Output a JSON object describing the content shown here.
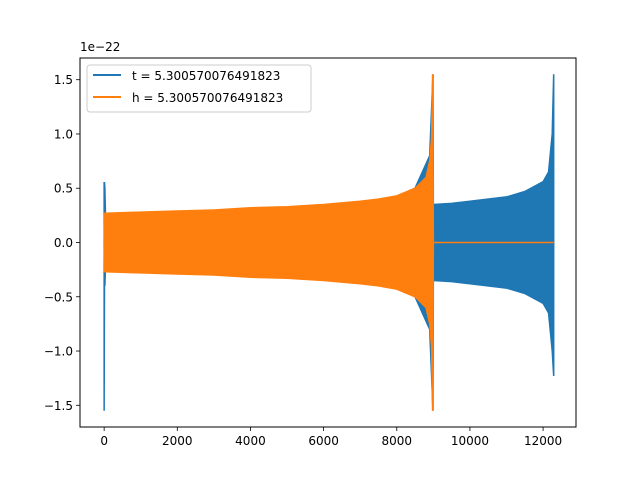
{
  "chart_data": {
    "type": "line",
    "title": "",
    "xlabel": "",
    "ylabel": "",
    "xlim": [
      -660,
      12900
    ],
    "ylim": [
      -1.7,
      1.7
    ],
    "y_offset_label": "1e−22",
    "x_ticks": [
      0,
      2000,
      4000,
      6000,
      8000,
      10000,
      12000
    ],
    "x_tick_labels": [
      "0",
      "2000",
      "4000",
      "6000",
      "8000",
      "10000",
      "12000"
    ],
    "y_ticks": [
      -1.5,
      -1.0,
      -0.5,
      0.0,
      0.5,
      1.0,
      1.5
    ],
    "y_tick_labels": [
      "−1.5",
      "−1.0",
      "−0.5",
      "0.0",
      "0.5",
      "1.0",
      "1.5"
    ],
    "grid": false,
    "legend_position": "top-left",
    "series": [
      {
        "name": "t = 5.300570076491823",
        "color": "#1f77b4",
        "x": [
          0,
          10,
          20,
          40,
          100,
          1000,
          2000,
          3000,
          4000,
          5000,
          6000,
          7000,
          8000,
          8500,
          8900,
          8990,
          9000,
          9500,
          10000,
          11000,
          11500,
          12000,
          12150,
          12250,
          12290
        ],
        "y_upper": [
          0.55,
          0.55,
          0.5,
          0.2,
          0.26,
          0.27,
          0.28,
          0.29,
          0.3,
          0.31,
          0.33,
          0.36,
          0.42,
          0.5,
          0.8,
          1.55,
          0.35,
          0.36,
          0.38,
          0.42,
          0.47,
          0.56,
          0.65,
          1.0,
          1.55
        ],
        "y_lower": [
          -1.55,
          -0.3,
          -0.4,
          -0.2,
          -0.26,
          -0.27,
          -0.28,
          -0.29,
          -0.3,
          -0.31,
          -0.33,
          -0.36,
          -0.42,
          -0.5,
          -0.8,
          -1.55,
          -0.35,
          -0.36,
          -0.38,
          -0.42,
          -0.47,
          -0.56,
          -0.65,
          -1.0,
          -1.23
        ]
      },
      {
        "name": "h = 5.300570076491823",
        "color": "#ff7f0e",
        "x": [
          0,
          10,
          20,
          1000,
          2000,
          3000,
          4000,
          5000,
          6000,
          7000,
          7500,
          8000,
          8500,
          8800,
          8900,
          8950,
          8980,
          9000,
          12290
        ],
        "y_upper": [
          0.0,
          0.27,
          0.27,
          0.28,
          0.29,
          0.3,
          0.32,
          0.33,
          0.35,
          0.38,
          0.4,
          0.43,
          0.5,
          0.6,
          0.75,
          0.95,
          1.55,
          0.0,
          0.0
        ],
        "y_lower": [
          0.0,
          -0.27,
          -0.27,
          -0.28,
          -0.29,
          -0.3,
          -0.32,
          -0.33,
          -0.35,
          -0.38,
          -0.4,
          -0.43,
          -0.5,
          -0.6,
          -0.75,
          -0.95,
          -1.55,
          0.0,
          0.0
        ]
      }
    ]
  }
}
